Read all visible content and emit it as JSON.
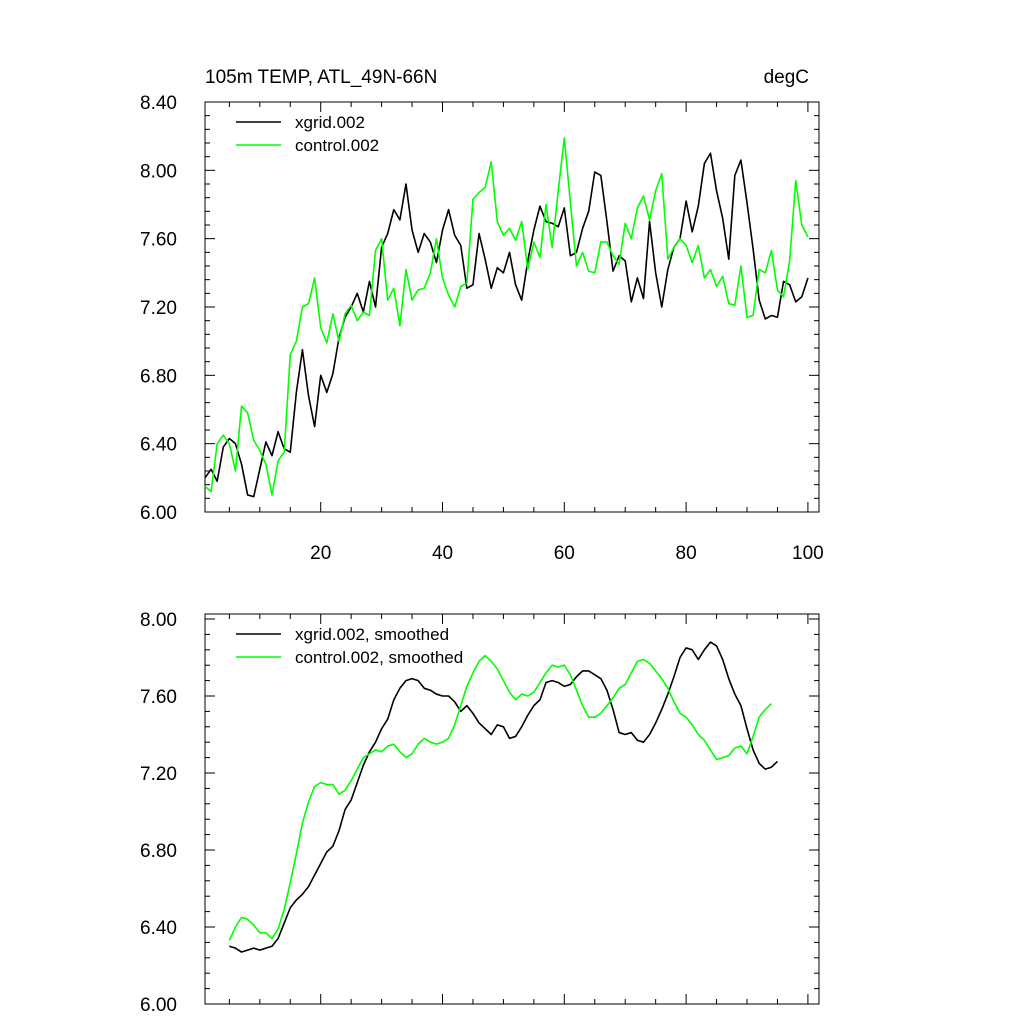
{
  "chart_data": [
    {
      "type": "line",
      "title": "105m TEMP, ATL_49N-66N",
      "units": "degC",
      "xlabel": "",
      "ylabel": "",
      "xlim": [
        1,
        101
      ],
      "ylim": [
        6.0,
        8.4
      ],
      "x_ticks": [
        20,
        40,
        60,
        80,
        100
      ],
      "x_tick_labels": [
        "20",
        "40",
        "60",
        "80",
        "100"
      ],
      "y_ticks": [
        6.0,
        6.4,
        6.8,
        7.2,
        7.6,
        8.0,
        8.4
      ],
      "y_tick_labels": [
        "6.00",
        "6.40",
        "6.80",
        "7.20",
        "7.60",
        "8.00",
        "8.40"
      ],
      "legend_position": "top-left",
      "series": [
        {
          "name": "xgrid.002",
          "color": "#000000",
          "x_start": 1,
          "values": [
            6.2,
            6.25,
            6.18,
            6.38,
            6.43,
            6.4,
            6.28,
            6.1,
            6.09,
            6.25,
            6.41,
            6.33,
            6.47,
            6.37,
            6.35,
            6.7,
            6.95,
            6.68,
            6.5,
            6.8,
            6.7,
            6.81,
            7.02,
            7.14,
            7.2,
            7.28,
            7.17,
            7.35,
            7.2,
            7.55,
            7.63,
            7.77,
            7.71,
            7.92,
            7.65,
            7.52,
            7.63,
            7.58,
            7.46,
            7.65,
            7.77,
            7.62,
            7.56,
            7.31,
            7.33,
            7.63,
            7.48,
            7.31,
            7.43,
            7.4,
            7.52,
            7.33,
            7.24,
            7.47,
            7.65,
            7.79,
            7.7,
            7.69,
            7.67,
            7.78,
            7.5,
            7.52,
            7.66,
            7.76,
            7.99,
            7.97,
            7.7,
            7.41,
            7.5,
            7.47,
            7.23,
            7.37,
            7.25,
            7.7,
            7.4,
            7.2,
            7.42,
            7.55,
            7.6,
            7.82,
            7.64,
            7.79,
            8.04,
            8.1,
            7.88,
            7.72,
            7.48,
            7.97,
            8.06,
            7.81,
            7.54,
            7.24,
            7.13,
            7.15,
            7.14,
            7.35,
            7.33,
            7.23,
            7.26,
            7.37
          ]
        },
        {
          "name": "control.002",
          "color": "#00ff00",
          "x_start": 1,
          "values": [
            6.15,
            6.12,
            6.4,
            6.45,
            6.4,
            6.24,
            6.62,
            6.58,
            6.42,
            6.36,
            6.28,
            6.1,
            6.3,
            6.35,
            6.92,
            7.0,
            7.2,
            7.22,
            7.37,
            7.08,
            6.99,
            7.16,
            7.0,
            7.16,
            7.21,
            7.12,
            7.17,
            7.15,
            7.53,
            7.6,
            7.24,
            7.31,
            7.09,
            7.42,
            7.24,
            7.3,
            7.31,
            7.4,
            7.6,
            7.37,
            7.27,
            7.2,
            7.32,
            7.34,
            7.83,
            7.87,
            7.9,
            8.05,
            7.7,
            7.62,
            7.66,
            7.59,
            7.7,
            7.42,
            7.58,
            7.49,
            7.8,
            7.55,
            7.88,
            8.19,
            7.81,
            7.44,
            7.52,
            7.41,
            7.4,
            7.58,
            7.58,
            7.5,
            7.45,
            7.69,
            7.6,
            7.78,
            7.85,
            7.71,
            7.88,
            7.98,
            7.48,
            7.55,
            7.6,
            7.56,
            7.46,
            7.56,
            7.37,
            7.42,
            7.32,
            7.38,
            7.22,
            7.21,
            7.44,
            7.14,
            7.15,
            7.42,
            7.4,
            7.53,
            7.3,
            7.26,
            7.47,
            7.94,
            7.68,
            7.61
          ]
        }
      ]
    },
    {
      "type": "line",
      "title": "",
      "xlabel": "",
      "ylabel": "",
      "xlim": [
        1,
        101
      ],
      "ylim": [
        6.0,
        8.0
      ],
      "x_ticks": [
        20,
        40,
        60,
        80,
        100
      ],
      "x_tick_labels": [],
      "y_ticks": [
        6.0,
        6.4,
        6.8,
        7.2,
        7.6,
        8.0
      ],
      "y_tick_labels": [
        "6.00",
        "6.40",
        "6.80",
        "7.20",
        "7.60",
        "8.00"
      ],
      "legend_position": "top-left",
      "series": [
        {
          "name": "xgrid.002, smoothed",
          "color": "#000000",
          "x_start": 5,
          "values": [
            6.3,
            6.29,
            6.27,
            6.28,
            6.29,
            6.28,
            6.29,
            6.3,
            6.34,
            6.42,
            6.5,
            6.54,
            6.57,
            6.61,
            6.67,
            6.73,
            6.79,
            6.82,
            6.9,
            7.01,
            7.06,
            7.15,
            7.24,
            7.31,
            7.36,
            7.43,
            7.48,
            7.58,
            7.64,
            7.68,
            7.69,
            7.68,
            7.64,
            7.63,
            7.61,
            7.6,
            7.6,
            7.57,
            7.52,
            7.55,
            7.51,
            7.46,
            7.43,
            7.4,
            7.45,
            7.44,
            7.38,
            7.39,
            7.44,
            7.5,
            7.55,
            7.58,
            7.67,
            7.68,
            7.67,
            7.65,
            7.66,
            7.7,
            7.73,
            7.73,
            7.71,
            7.69,
            7.63,
            7.53,
            7.41,
            7.4,
            7.41,
            7.37,
            7.36,
            7.4,
            7.46,
            7.53,
            7.61,
            7.7,
            7.8,
            7.85,
            7.84,
            7.79,
            7.84,
            7.88,
            7.86,
            7.79,
            7.69,
            7.61,
            7.55,
            7.43,
            7.32,
            7.25,
            7.22,
            7.23,
            7.26
          ]
        },
        {
          "name": "control.002, smoothed",
          "color": "#00ff00",
          "x_start": 5,
          "values": [
            6.33,
            6.4,
            6.45,
            6.44,
            6.41,
            6.37,
            6.37,
            6.34,
            6.39,
            6.49,
            6.63,
            6.78,
            6.94,
            7.05,
            7.13,
            7.15,
            7.14,
            7.14,
            7.09,
            7.11,
            7.16,
            7.22,
            7.28,
            7.3,
            7.32,
            7.31,
            7.34,
            7.35,
            7.31,
            7.28,
            7.3,
            7.35,
            7.38,
            7.36,
            7.35,
            7.36,
            7.38,
            7.45,
            7.55,
            7.65,
            7.72,
            7.78,
            7.81,
            7.78,
            7.74,
            7.68,
            7.62,
            7.58,
            7.61,
            7.6,
            7.62,
            7.67,
            7.72,
            7.76,
            7.75,
            7.76,
            7.71,
            7.63,
            7.55,
            7.49,
            7.49,
            7.51,
            7.55,
            7.59,
            7.64,
            7.66,
            7.72,
            7.78,
            7.79,
            7.77,
            7.73,
            7.69,
            7.64,
            7.57,
            7.51,
            7.49,
            7.45,
            7.4,
            7.37,
            7.32,
            7.27,
            7.28,
            7.29,
            7.33,
            7.34,
            7.3,
            7.39,
            7.49,
            7.53,
            7.56
          ]
        }
      ]
    }
  ]
}
